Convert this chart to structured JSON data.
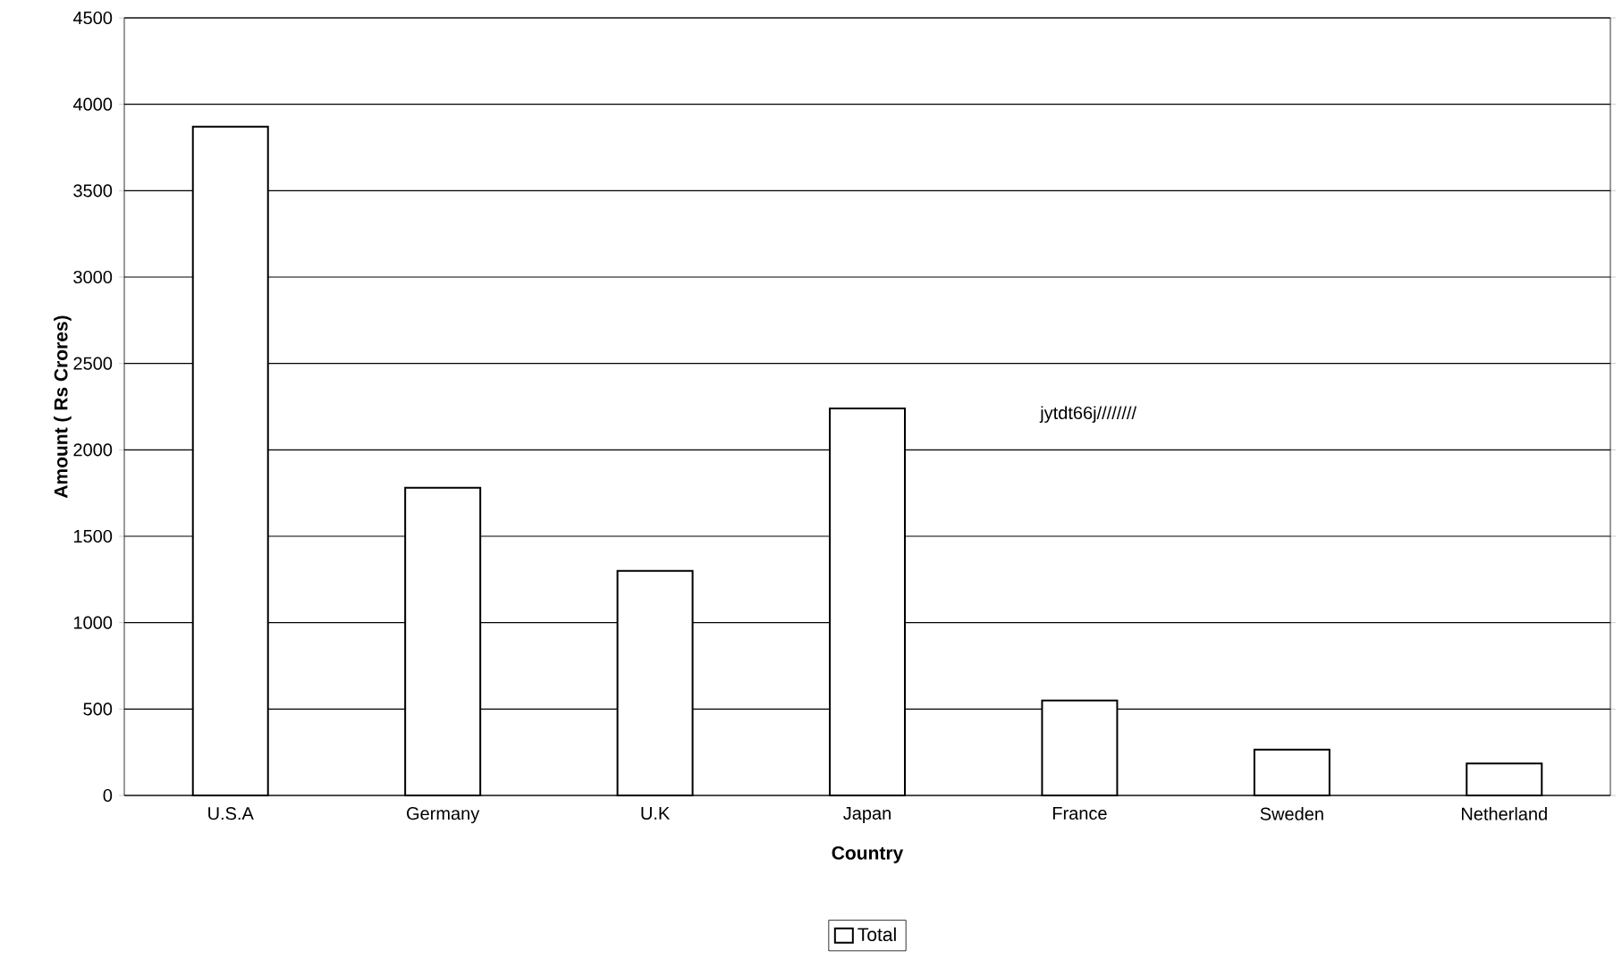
{
  "chart_data": {
    "type": "bar",
    "xlabel": "Country",
    "ylabel": "Amount ( Rs Crores)",
    "categories": [
      "U.S.A",
      "Germany",
      "U.K",
      "Japan",
      "France",
      "Sweden",
      "Netherland"
    ],
    "series": [
      {
        "name": "Total",
        "color": "#000000",
        "values": [
          3870,
          1780,
          1300,
          2240,
          550,
          265,
          185
        ]
      }
    ],
    "ylim": [
      0,
      4500
    ],
    "yticks": [
      0,
      500,
      1000,
      1500,
      2000,
      2500,
      3000,
      3500,
      4000,
      4500
    ],
    "grid": "y",
    "legend": "bottom",
    "annotations": [
      "jytdt66j////////"
    ]
  }
}
